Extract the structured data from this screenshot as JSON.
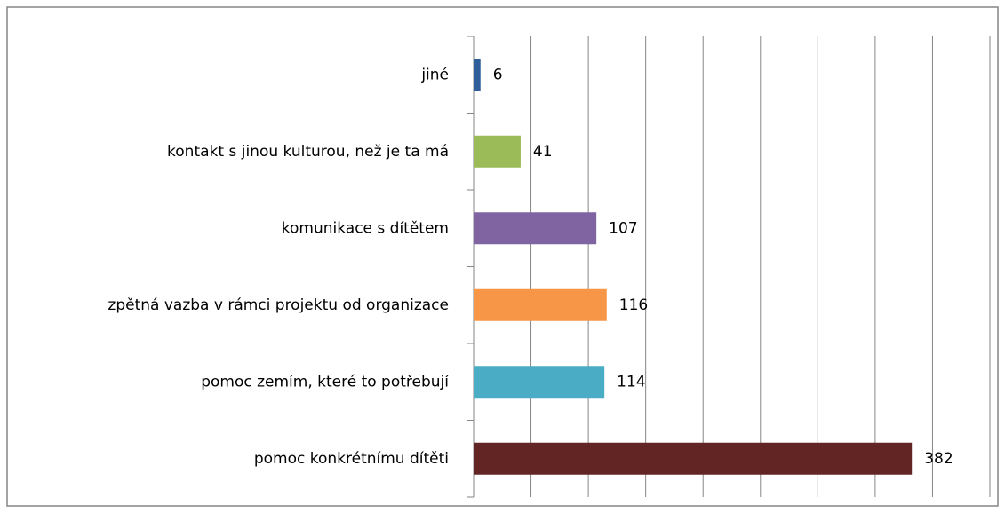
{
  "chart_data": {
    "type": "bar",
    "orientation": "horizontal",
    "categories": [
      "jiné",
      "kontakt s jinou kulturou, než je ta má",
      "komunikace s dítětem",
      "zpětná vazba v rámci projektu od organizace",
      "pomoc zemím, které to potřebují",
      "pomoc konkrétnímu dítěti"
    ],
    "values": [
      6,
      41,
      107,
      116,
      114,
      382
    ],
    "colors": [
      "#2f5f9a",
      "#9bbb59",
      "#8064a2",
      "#f79646",
      "#4bacc6",
      "#632523"
    ],
    "xlim": [
      0,
      450
    ],
    "xticks": [
      0,
      50,
      100,
      150,
      200,
      250,
      300,
      350,
      400,
      450
    ],
    "grid": true
  }
}
